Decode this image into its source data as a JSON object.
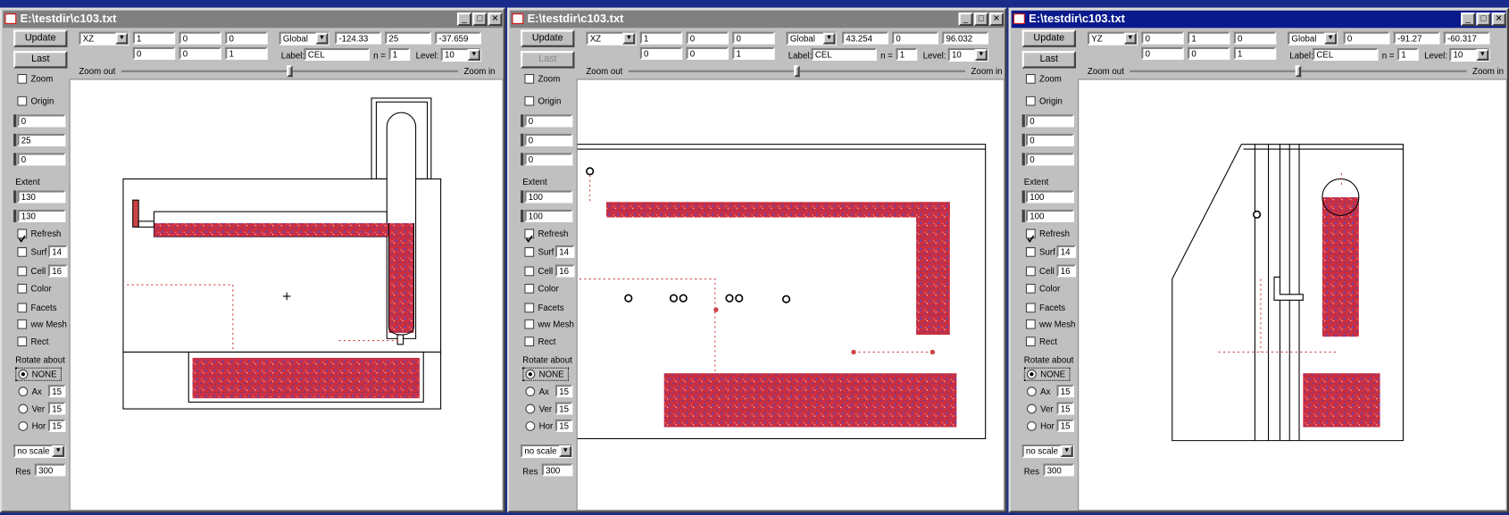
{
  "windows": [
    {
      "title": "E:\\testdir\\c103.txt",
      "toolbar": {
        "view": "XZ",
        "orient": [
          "1",
          "0",
          "0",
          "0",
          "0",
          "1"
        ],
        "frame": "Global",
        "pos": [
          "-124.33",
          "25",
          "-37.659"
        ],
        "label_caption": "Label:",
        "label": "CEL",
        "n_caption": "n =",
        "n": "1",
        "level_caption": "Level:",
        "level": "10",
        "zoom_out": "Zoom out",
        "zoom_in": "Zoom in"
      },
      "panel": {
        "update": "Update",
        "last": "Last",
        "zoom": "Zoom",
        "origin": "Origin",
        "origin_fields": [
          "0",
          "25",
          "0"
        ],
        "extent_caption": "Extent",
        "extent_fields": [
          "130",
          "130"
        ],
        "refresh": "Refresh",
        "surf": "Surf",
        "surf_value": "14",
        "cell": "Cell",
        "cell_value": "16",
        "color": "Color",
        "facets": "Facets",
        "ww_mesh": "ww Mesh",
        "rect": "Rect",
        "rotate_caption": "Rotate about",
        "none": "NONE",
        "ax": "Ax",
        "ax_value": "15",
        "ver": "Ver",
        "ver_value": "15",
        "hor": "Hor",
        "hor_value": "15",
        "scale": "no scale",
        "res": "Res",
        "res_value": "300"
      }
    },
    {
      "title": "E:\\testdir\\c103.txt",
      "toolbar": {
        "view": "XZ",
        "orient": [
          "1",
          "0",
          "0",
          "0",
          "0",
          "1"
        ],
        "frame": "Global",
        "pos": [
          "43.254",
          "0",
          "96.032"
        ],
        "label_caption": "Label:",
        "label": "CEL",
        "n_caption": "n =",
        "n": "1",
        "level_caption": "Level:",
        "level": "10",
        "zoom_out": "Zoom out",
        "zoom_in": "Zoom in"
      },
      "panel": {
        "update": "Update",
        "last": "Last",
        "zoom": "Zoom",
        "origin": "Origin",
        "origin_fields": [
          "0",
          "0",
          "0"
        ],
        "extent_caption": "Extent",
        "extent_fields": [
          "100",
          "100"
        ],
        "refresh": "Refresh",
        "surf": "Surf",
        "surf_value": "14",
        "cell": "Cell",
        "cell_value": "16",
        "color": "Color",
        "facets": "Facets",
        "ww_mesh": "ww Mesh",
        "rect": "Rect",
        "rotate_caption": "Rotate about",
        "none": "NONE",
        "ax": "Ax",
        "ax_value": "15",
        "ver": "Ver",
        "ver_value": "15",
        "hor": "Hor",
        "hor_value": "15",
        "scale": "no scale",
        "res": "Res",
        "res_value": "300"
      }
    },
    {
      "title": "E:\\testdir\\c103.txt",
      "toolbar": {
        "view": "YZ",
        "orient": [
          "0",
          "1",
          "0",
          "0",
          "0",
          "1"
        ],
        "frame": "Global",
        "pos": [
          "0",
          "-91.27",
          "-60.317"
        ],
        "label_caption": "Label:",
        "label": "CEL",
        "n_caption": "n =",
        "n": "1",
        "level_caption": "Level:",
        "level": "10",
        "zoom_out": "Zoom out",
        "zoom_in": "Zoom in"
      },
      "panel": {
        "update": "Update",
        "last": "Last",
        "zoom": "Zoom",
        "origin": "Origin",
        "origin_fields": [
          "0",
          "0",
          "0"
        ],
        "extent_caption": "Extent",
        "extent_fields": [
          "100",
          "100"
        ],
        "refresh": "Refresh",
        "surf": "Surf",
        "surf_value": "14",
        "cell": "Cell",
        "cell_value": "16",
        "color": "Color",
        "facets": "Facets",
        "ww_mesh": "ww Mesh",
        "rect": "Rect",
        "rotate_caption": "Rotate about",
        "none": "NONE",
        "ax": "Ax",
        "ax_value": "15",
        "ver": "Ver",
        "ver_value": "15",
        "hor": "Hor",
        "hor_value": "15",
        "scale": "no scale",
        "res": "Res",
        "res_value": "300"
      }
    }
  ]
}
